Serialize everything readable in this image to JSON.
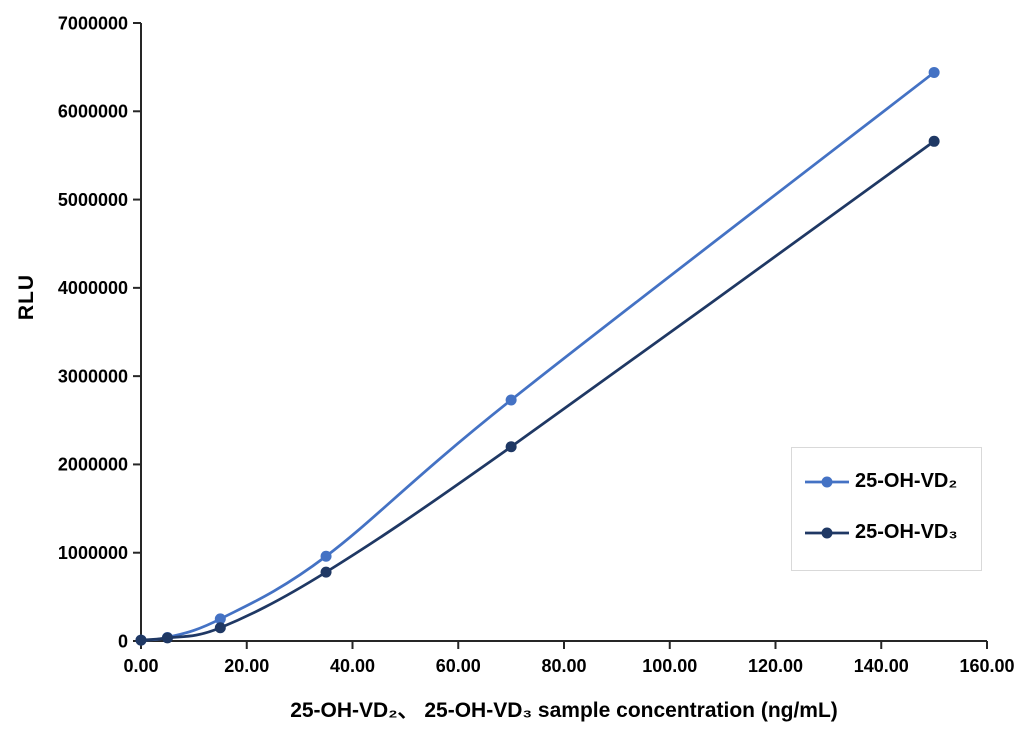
{
  "chart_data": {
    "type": "line",
    "title": "",
    "xlabel": "25-OH-VD₂、 25-OH-VD₃ sample concentration (ng/mL)",
    "ylabel": "RLU",
    "x": [
      0,
      5,
      15,
      35,
      70,
      150
    ],
    "series": [
      {
        "name": "25-OH-VD₂",
        "color": "#4472C4",
        "values": [
          10000,
          40000,
          250000,
          960000,
          2730000,
          6440000
        ]
      },
      {
        "name": "25-OH-VD₃",
        "color": "#1F3864",
        "values": [
          10000,
          35000,
          150000,
          780000,
          2200000,
          5660000
        ]
      }
    ],
    "xlim": [
      0,
      160
    ],
    "ylim": [
      0,
      7000000
    ],
    "x_ticks": {
      "values": [
        0,
        20,
        40,
        60,
        80,
        100,
        120,
        140,
        160
      ],
      "labels": [
        "0.00",
        "20.00",
        "40.00",
        "60.00",
        "80.00",
        "100.00",
        "120.00",
        "140.00",
        "160.00"
      ]
    },
    "y_ticks": {
      "values": [
        0,
        1000000,
        2000000,
        3000000,
        4000000,
        5000000,
        6000000,
        7000000
      ],
      "labels": [
        "0",
        "1000000",
        "2000000",
        "3000000",
        "4000000",
        "5000000",
        "6000000",
        "7000000"
      ]
    },
    "grid": false,
    "legend_position": "right-middle",
    "line_style": "smooth",
    "marker": "circle",
    "colors": {
      "axis": "#262626",
      "text": "#000000",
      "legend_border": "#D9D9D9",
      "background": "#FFFFFF"
    }
  }
}
